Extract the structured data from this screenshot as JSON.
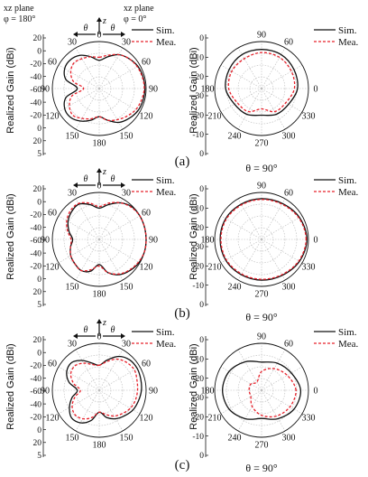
{
  "header": {
    "xz_left": "xz plane",
    "phi_left": "φ = 180°",
    "xz_right": "xz plane",
    "phi_right": "φ = 0°",
    "theta": "θ",
    "z": "z"
  },
  "legend": {
    "sim": "Sim.",
    "mea": "Mea."
  },
  "ylabel": "Realized Gain (dBi)",
  "azimuth_title": "θ = 90°",
  "captions": [
    "(a)",
    "(b)",
    "(c)"
  ],
  "colors": {
    "sim": "#111111",
    "mea": "#e8202a",
    "grid": "#b8b8b8"
  },
  "elev_angle_labels": [
    {
      "deg": 0,
      "text": "0"
    },
    {
      "deg": 30,
      "text": "30"
    },
    {
      "deg": 60,
      "text": "60"
    },
    {
      "deg": 90,
      "text": "90"
    },
    {
      "deg": 120,
      "text": "120"
    },
    {
      "deg": 150,
      "text": "150"
    },
    {
      "deg": 180,
      "text": "180"
    },
    {
      "deg": 210,
      "text": "150"
    },
    {
      "deg": 240,
      "text": "120"
    },
    {
      "deg": 270,
      "text": "90"
    },
    {
      "deg": 300,
      "text": "60"
    },
    {
      "deg": 330,
      "text": "30"
    }
  ],
  "azim_angle_labels": [
    {
      "deg": 90,
      "text": "90"
    },
    {
      "deg": 60,
      "text": "60"
    },
    {
      "deg": 0,
      "text": "0"
    },
    {
      "deg": 330,
      "text": "330"
    },
    {
      "deg": 300,
      "text": "300"
    },
    {
      "deg": 270,
      "text": "270"
    },
    {
      "deg": 240,
      "text": "240"
    },
    {
      "deg": 210,
      "text": "210"
    },
    {
      "deg": 180,
      "text": "180"
    }
  ],
  "chart_data": [
    {
      "type": "line",
      "id": "a-elevation",
      "caption": "(a)",
      "polar": true,
      "rlim": [
        -30,
        0
      ],
      "radial_ticks": [
        "20",
        "0",
        "-20",
        "-40",
        "-60",
        "-40",
        "-20",
        "0",
        "20",
        "5"
      ],
      "theta_deg": [
        0,
        15,
        30,
        45,
        60,
        75,
        90,
        105,
        120,
        135,
        150,
        165,
        180,
        195,
        210,
        225,
        240,
        255,
        270,
        285,
        300,
        315,
        330,
        345
      ],
      "series": [
        {
          "name": "Sim.",
          "dash": false,
          "r_dbi": [
            -12,
            -9,
            -5,
            -3,
            -1.5,
            -1,
            -0.8,
            -1,
            -1.5,
            -3,
            -5,
            -9,
            -12,
            -9,
            -6,
            -4,
            -4.5,
            -8,
            -16,
            -8,
            -4.5,
            -4,
            -5.5,
            -9
          ]
        },
        {
          "name": "Mea.",
          "dash": true,
          "r_dbi": [
            -10,
            -8,
            -5,
            -3,
            -2,
            -1.5,
            -1.2,
            -2,
            -3,
            -5,
            -7,
            -9,
            -12,
            -10,
            -8,
            -6,
            -8,
            -12,
            -20,
            -13,
            -9,
            -7,
            -8,
            -9
          ]
        }
      ]
    },
    {
      "type": "line",
      "id": "a-azimuth",
      "caption": "(a)",
      "polar": true,
      "rlim": [
        -30,
        0
      ],
      "radial_ticks": [
        "0",
        "-10",
        "-20",
        "-30",
        "-20",
        "-10",
        "0"
      ],
      "theta_deg": [
        0,
        30,
        60,
        90,
        120,
        150,
        180,
        210,
        240,
        270,
        300,
        330
      ],
      "series": [
        {
          "name": "Sim.",
          "dash": false,
          "r_dbi": [
            -7,
            -6,
            -5,
            -5,
            -5,
            -6,
            -7,
            -10,
            -11,
            -13,
            -11,
            -10
          ]
        },
        {
          "name": "Mea.",
          "dash": true,
          "r_dbi": [
            -9,
            -8,
            -7,
            -7,
            -8,
            -8,
            -9,
            -12,
            -13,
            -17,
            -13,
            -12
          ]
        }
      ]
    },
    {
      "type": "line",
      "id": "b-elevation",
      "caption": "(b)",
      "polar": true,
      "rlim": [
        -30,
        0
      ],
      "radial_ticks": [
        "20",
        "0",
        "-20",
        "-40",
        "-60",
        "-40",
        "-20",
        "0",
        "20",
        "5"
      ],
      "theta_deg": [
        0,
        15,
        30,
        45,
        60,
        75,
        90,
        105,
        120,
        135,
        150,
        165,
        180,
        195,
        210,
        225,
        240,
        255,
        270,
        285,
        300,
        315,
        330,
        345
      ],
      "series": [
        {
          "name": "Sim.",
          "dash": false,
          "r_dbi": [
            -10,
            -7,
            -3,
            -0.5,
            0.5,
            1,
            1,
            0.5,
            -0.5,
            -2,
            -4,
            -8,
            -14,
            -9,
            -7,
            -8,
            -9,
            -11,
            -13,
            -10,
            -7,
            -5,
            -4,
            -7
          ]
        },
        {
          "name": "Mea.",
          "dash": true,
          "r_dbi": [
            -9,
            -6,
            -3,
            -1,
            0,
            0.5,
            0.5,
            0,
            -1,
            -2.5,
            -4.5,
            -8,
            -13,
            -10,
            -7,
            -8,
            -9,
            -11,
            -12,
            -9,
            -6,
            -4,
            -3.5,
            -6
          ]
        }
      ]
    },
    {
      "type": "line",
      "id": "b-azimuth",
      "caption": "(b)",
      "polar": true,
      "rlim": [
        -30,
        0
      ],
      "radial_ticks": [
        "0",
        "-10",
        "-20",
        "-30",
        "-20",
        "-10",
        "0"
      ],
      "theta_deg": [
        0,
        30,
        60,
        90,
        120,
        150,
        180,
        210,
        240,
        270,
        300,
        330
      ],
      "series": [
        {
          "name": "Sim.",
          "dash": false,
          "r_dbi": [
            -1,
            -2,
            -3.5,
            -4,
            -4,
            -3.5,
            -3.5,
            -3.5,
            -4,
            -4,
            -3.5,
            -2
          ]
        },
        {
          "name": "Mea.",
          "dash": true,
          "r_dbi": [
            -1.5,
            -2.5,
            -4,
            -4.5,
            -4.5,
            -4,
            -4,
            -4,
            -4.5,
            -4.5,
            -4,
            -2.5
          ]
        }
      ]
    },
    {
      "type": "line",
      "id": "c-elevation",
      "caption": "(c)",
      "polar": true,
      "rlim": [
        -30,
        0
      ],
      "radial_ticks": [
        "20",
        "0",
        "-20",
        "-40",
        "-60",
        "-40",
        "-20",
        "0",
        "20",
        "5"
      ],
      "theta_deg": [
        0,
        15,
        30,
        45,
        60,
        75,
        90,
        105,
        120,
        135,
        150,
        165,
        180,
        195,
        210,
        225,
        240,
        255,
        270,
        285,
        300,
        315,
        330,
        345
      ],
      "series": [
        {
          "name": "Sim.",
          "dash": false,
          "r_dbi": [
            -14,
            -10,
            -5,
            -2.5,
            -2,
            -2.5,
            -3,
            -4,
            -5,
            -7,
            -9,
            -12,
            -16,
            -10,
            -6,
            -5,
            -8,
            -12,
            -16,
            -10,
            -6,
            -5,
            -8,
            -12
          ]
        },
        {
          "name": "Mea.",
          "dash": true,
          "r_dbi": [
            -14,
            -11,
            -7,
            -5,
            -4,
            -5,
            -5.5,
            -6,
            -7,
            -9,
            -11,
            -14,
            -16,
            -12,
            -9,
            -8,
            -10,
            -14,
            -18,
            -13,
            -9,
            -8,
            -10,
            -13
          ]
        }
      ]
    },
    {
      "type": "line",
      "id": "c-azimuth",
      "caption": "(c)",
      "polar": true,
      "rlim": [
        -30,
        0
      ],
      "radial_ticks": [
        "0",
        "-10",
        "-20",
        "-30",
        "-20",
        "-10",
        "0"
      ],
      "theta_deg": [
        0,
        30,
        60,
        90,
        120,
        150,
        180,
        210,
        240,
        270,
        300,
        330
      ],
      "series": [
        {
          "name": "Sim.",
          "dash": false,
          "r_dbi": [
            -5,
            -8,
            -10,
            -12,
            -9,
            -6,
            -5,
            -6,
            -9,
            -12,
            -9,
            -6
          ]
        },
        {
          "name": "Mea.",
          "dash": true,
          "r_dbi": [
            -8,
            -11,
            -14,
            -18,
            -24,
            -22,
            -22,
            -22,
            -18,
            -14,
            -11,
            -9
          ]
        }
      ]
    }
  ]
}
